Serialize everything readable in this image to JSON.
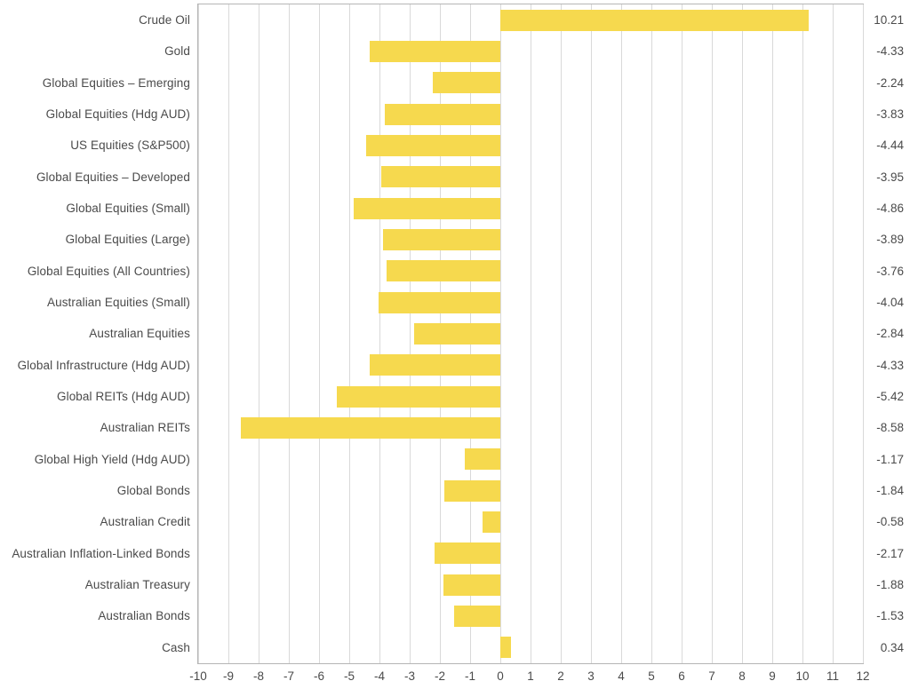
{
  "chart_data": {
    "type": "bar",
    "orientation": "horizontal",
    "title": "",
    "xlabel": "",
    "ylabel": "",
    "grid": true,
    "legend": "none",
    "xlim": [
      -10,
      12
    ],
    "xticks": [
      -10,
      -9,
      -8,
      -7,
      -6,
      -5,
      -4,
      -3,
      -2,
      -1,
      0,
      1,
      2,
      3,
      4,
      5,
      6,
      7,
      8,
      9,
      10,
      11,
      12
    ],
    "categories": [
      "Crude Oil",
      "Gold",
      "Global Equities – Emerging",
      "Global Equities (Hdg AUD)",
      "US Equities (S&P500)",
      "Global Equities – Developed",
      "Global Equities (Small)",
      "Global Equities (Large)",
      "Global Equities (All Countries)",
      "Australian Equities (Small)",
      "Australian Equities",
      "Global Infrastructure (Hdg AUD)",
      "Global REITs (Hdg AUD)",
      "Australian REITs",
      "Global High Yield (Hdg AUD)",
      "Global Bonds",
      "Australian Credit",
      "Australian Inflation-Linked Bonds",
      "Australian Treasury",
      "Australian Bonds",
      "Cash"
    ],
    "values": [
      10.21,
      -4.33,
      -2.24,
      -3.83,
      -4.44,
      -3.95,
      -4.86,
      -3.89,
      -3.76,
      -4.04,
      -2.84,
      -4.33,
      -5.42,
      -8.58,
      -1.17,
      -1.84,
      -0.58,
      -2.17,
      -1.88,
      -1.53,
      0.34
    ],
    "value_labels": [
      "10.21",
      "-4.33",
      "-2.24",
      "-3.83",
      "-4.44",
      "-3.95",
      "-4.86",
      "-3.89",
      "-3.76",
      "-4.04",
      "-2.84",
      "-4.33",
      "-5.42",
      "-8.58",
      "-1.17",
      "-1.84",
      "-0.58",
      "-2.17",
      "-1.88",
      "-1.53",
      "0.34"
    ],
    "colors": {
      "bar": "#f6d94e",
      "gridline": "#d9d9d9",
      "plot_border": "#b5b5b5",
      "label_text": "#4a4a4a",
      "tick_text": "#4a4a4a",
      "background": "#ffffff"
    }
  }
}
